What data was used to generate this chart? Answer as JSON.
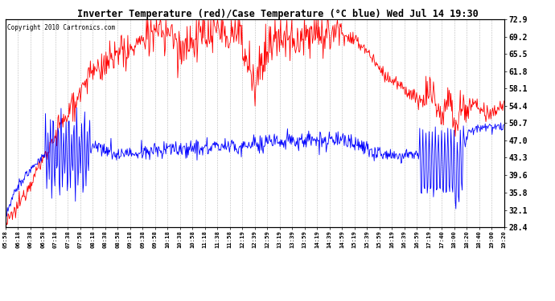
{
  "title": "Inverter Temperature (red)/Case Temperature (°C blue) Wed Jul 14 19:30",
  "copyright": "Copyright 2010 Cartronics.com",
  "ylabel_right_values": [
    72.9,
    69.2,
    65.5,
    61.8,
    58.1,
    54.4,
    50.7,
    47.0,
    43.3,
    39.6,
    35.8,
    32.1,
    28.4
  ],
  "ymin": 28.4,
  "ymax": 72.9,
  "background_color": "#ffffff",
  "plot_bg_color": "#ffffff",
  "grid_color": "#aaaaaa",
  "red_color": "#ff0000",
  "blue_color": "#0000ff",
  "x_labels": [
    "05:58",
    "06:18",
    "06:38",
    "06:58",
    "07:18",
    "07:38",
    "07:58",
    "08:18",
    "08:38",
    "08:58",
    "09:18",
    "09:38",
    "09:58",
    "10:18",
    "10:38",
    "10:58",
    "11:18",
    "11:38",
    "11:58",
    "12:19",
    "12:39",
    "12:59",
    "13:19",
    "13:39",
    "13:59",
    "14:19",
    "14:39",
    "14:59",
    "15:19",
    "15:39",
    "15:59",
    "16:19",
    "16:39",
    "16:59",
    "17:19",
    "17:40",
    "18:00",
    "18:20",
    "18:40",
    "19:00",
    "19:20"
  ],
  "figwidth": 6.9,
  "figheight": 3.75,
  "dpi": 100
}
